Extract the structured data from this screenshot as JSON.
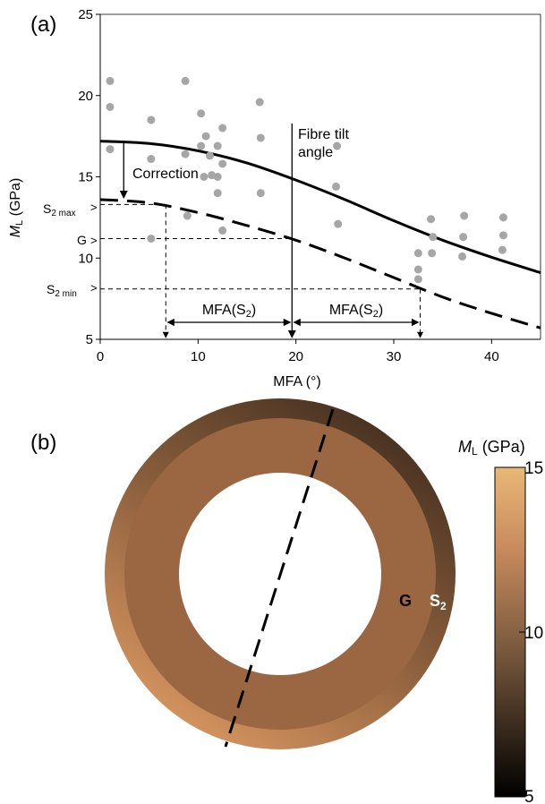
{
  "panel_a": {
    "label": "(a)",
    "annotations": {
      "correction": "Correction",
      "fibre_tilt_line1": "Fibre tilt",
      "fibre_tilt_line2": "angle",
      "s2max": "S",
      "s2max_sub": "2 max",
      "g": "G",
      "s2min": "S",
      "s2min_sub": "2 min",
      "mfa_s2_left": "MFA(S",
      "mfa_s2_left_sub": "2",
      "mfa_s2_left_close": ")",
      "mfa_s2_right": "MFA(S",
      "mfa_s2_right_sub": "2",
      "mfa_s2_right_close": ")"
    }
  },
  "panel_b": {
    "label": "(b)",
    "colorbar_label_main": "M",
    "colorbar_label_sub": "L",
    "colorbar_label_unit": " (GPa)",
    "colorbar_ticks": [
      "15",
      "10",
      "5"
    ],
    "ring_label_g": "G",
    "ring_label_s2": "S",
    "ring_label_s2_sub": "2",
    "colors": {
      "colorbar_top": "#e9b877",
      "colorbar_mid": "#c78a5d",
      "colorbar_low": "#7a5a3e",
      "colorbar_bottom": "#000000",
      "ring_inner": "#9a6742",
      "ring_outer_light": "#dd9a63",
      "ring_outer_dark": "#3c2a1c"
    }
  },
  "chart_data": {
    "type": "scatter",
    "xlabel": "MFA (°)",
    "ylabel": "M",
    "ylabel_sub": "L",
    "ylabel_unit": " (GPa)",
    "xlim": [
      0,
      45
    ],
    "ylim": [
      5,
      25
    ],
    "xticks": [
      0,
      10,
      20,
      30,
      40
    ],
    "yticks": [
      5,
      10,
      15,
      20,
      25
    ],
    "x_tick_labels": [
      "0",
      "10",
      "20",
      "30",
      "40"
    ],
    "y_tick_labels": [
      "5",
      "10",
      "15",
      "20",
      "25"
    ],
    "grid": false,
    "colors": {
      "points": "#a6a6a6",
      "lines": "#000000"
    },
    "points": [
      {
        "x": 1,
        "y": 20.9
      },
      {
        "x": 1,
        "y": 19.3
      },
      {
        "x": 1,
        "y": 16.7
      },
      {
        "x": 5.2,
        "y": 18.5
      },
      {
        "x": 5.2,
        "y": 16.1
      },
      {
        "x": 5.2,
        "y": 11.2
      },
      {
        "x": 8.7,
        "y": 20.9
      },
      {
        "x": 8.7,
        "y": 16.4
      },
      {
        "x": 8.9,
        "y": 12.6
      },
      {
        "x": 10.3,
        "y": 18.9
      },
      {
        "x": 10.3,
        "y": 16.9
      },
      {
        "x": 10.8,
        "y": 17.5
      },
      {
        "x": 10.6,
        "y": 15.0
      },
      {
        "x": 11.2,
        "y": 16.3
      },
      {
        "x": 11.4,
        "y": 15.1
      },
      {
        "x": 12,
        "y": 16.9
      },
      {
        "x": 12,
        "y": 15.0
      },
      {
        "x": 12,
        "y": 14.0
      },
      {
        "x": 12.5,
        "y": 18.0
      },
      {
        "x": 12.5,
        "y": 15.8
      },
      {
        "x": 12.5,
        "y": 11.7
      },
      {
        "x": 16.3,
        "y": 19.6
      },
      {
        "x": 16.4,
        "y": 17.4
      },
      {
        "x": 16.4,
        "y": 14.0
      },
      {
        "x": 24.2,
        "y": 16.9
      },
      {
        "x": 24.1,
        "y": 14.4
      },
      {
        "x": 24.3,
        "y": 12.1
      },
      {
        "x": 32.5,
        "y": 10.3
      },
      {
        "x": 32.5,
        "y": 9.3
      },
      {
        "x": 32.5,
        "y": 8.7
      },
      {
        "x": 33.8,
        "y": 12.4
      },
      {
        "x": 34,
        "y": 11.3
      },
      {
        "x": 33.9,
        "y": 10.3
      },
      {
        "x": 37.2,
        "y": 12.6
      },
      {
        "x": 37.1,
        "y": 11.3
      },
      {
        "x": 37,
        "y": 10.1
      },
      {
        "x": 41.2,
        "y": 12.5
      },
      {
        "x": 41.2,
        "y": 11.4
      },
      {
        "x": 41.1,
        "y": 10.5
      }
    ],
    "series": [
      {
        "style": "solid",
        "x": [
          0,
          5,
          10,
          15,
          20,
          25,
          30,
          35,
          40,
          45
        ],
        "y": [
          17.2,
          17.05,
          16.6,
          15.85,
          14.8,
          13.6,
          12.3,
          11.1,
          10.05,
          9.1
        ]
      },
      {
        "style": "dashed",
        "x": [
          0,
          5,
          10,
          15,
          20,
          25,
          30,
          35,
          40,
          45
        ],
        "y": [
          13.6,
          13.4,
          12.8,
          12.0,
          11.1,
          10.0,
          8.8,
          7.6,
          6.6,
          5.7
        ]
      }
    ],
    "markers": {
      "fibre_tilt_x": 19.6,
      "s2max_y": 13.3,
      "g_y": 11.2,
      "s2min_y": 8.1,
      "s2max_x": 6.7,
      "s2min_x": 32.7,
      "correction_x": 2.4
    }
  }
}
